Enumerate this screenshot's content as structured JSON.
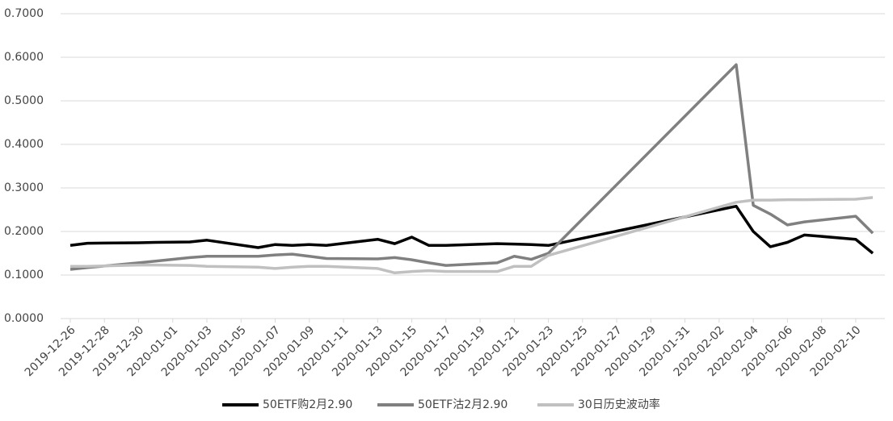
{
  "chart_data": {
    "type": "line",
    "x": [
      "2019-12-26",
      "2019-12-27",
      "2019-12-30",
      "2019-12-31",
      "2020-01-02",
      "2020-01-03",
      "2020-01-06",
      "2020-01-07",
      "2020-01-08",
      "2020-01-09",
      "2020-01-10",
      "2020-01-13",
      "2020-01-14",
      "2020-01-15",
      "2020-01-16",
      "2020-01-17",
      "2020-01-20",
      "2020-01-21",
      "2020-01-22",
      "2020-01-23",
      "2020-02-03",
      "2020-02-04",
      "2020-02-05",
      "2020-02-06",
      "2020-02-07",
      "2020-02-10",
      "2020-02-11"
    ],
    "series": [
      {
        "name": "50ETF购2月2.90",
        "color": "#000000",
        "values": [
          0.168,
          0.173,
          0.174,
          0.175,
          0.176,
          0.18,
          0.163,
          0.17,
          0.168,
          0.17,
          0.168,
          0.182,
          0.172,
          0.187,
          0.168,
          0.168,
          0.172,
          0.171,
          0.17,
          0.168,
          0.258,
          0.2,
          0.165,
          0.175,
          0.192,
          0.182,
          0.15
        ]
      },
      {
        "name": "50ETF沽2月2.90",
        "color": "#808080",
        "values": [
          0.113,
          0.117,
          0.128,
          0.132,
          0.14,
          0.143,
          0.143,
          0.146,
          0.148,
          0.143,
          0.138,
          0.137,
          0.14,
          0.135,
          0.128,
          0.122,
          0.128,
          0.143,
          0.136,
          0.15,
          0.583,
          0.26,
          0.24,
          0.215,
          0.222,
          0.235,
          0.196
        ]
      },
      {
        "name": "30日历史波动率",
        "color": "#c0c0c0",
        "values": [
          0.12,
          0.12,
          0.123,
          0.123,
          0.122,
          0.12,
          0.118,
          0.115,
          0.118,
          0.12,
          0.12,
          0.115,
          0.105,
          0.108,
          0.11,
          0.108,
          0.108,
          0.12,
          0.12,
          0.145,
          0.267,
          0.272,
          0.272,
          0.273,
          0.273,
          0.274,
          0.278
        ]
      }
    ],
    "xlim": [
      "2019-12-26",
      "2020-02-11"
    ],
    "xticks": [
      "2019-12-26",
      "2019-12-28",
      "2019-12-30",
      "2020-01-01",
      "2020-01-03",
      "2020-01-05",
      "2020-01-07",
      "2020-01-09",
      "2020-01-11",
      "2020-01-13",
      "2020-01-15",
      "2020-01-17",
      "2020-01-19",
      "2020-01-21",
      "2020-01-23",
      "2020-01-25",
      "2020-01-27",
      "2020-01-29",
      "2020-01-31",
      "2020-02-02",
      "2020-02-04",
      "2020-02-06",
      "2020-02-08",
      "2020-02-10"
    ],
    "ylim": [
      0,
      0.7
    ],
    "yticks": [
      {
        "value": 0,
        "label": "0.0000"
      },
      {
        "value": 0.1,
        "label": "0.1000"
      },
      {
        "value": 0.2,
        "label": "0.2000"
      },
      {
        "value": 0.3,
        "label": "0.3000"
      },
      {
        "value": 0.4,
        "label": "0.4000"
      },
      {
        "value": 0.5,
        "label": "0.5000"
      },
      {
        "value": 0.6,
        "label": "0.6000"
      },
      {
        "value": 0.7,
        "label": "0.7000"
      }
    ],
    "grid": true,
    "legend": "bottom"
  }
}
